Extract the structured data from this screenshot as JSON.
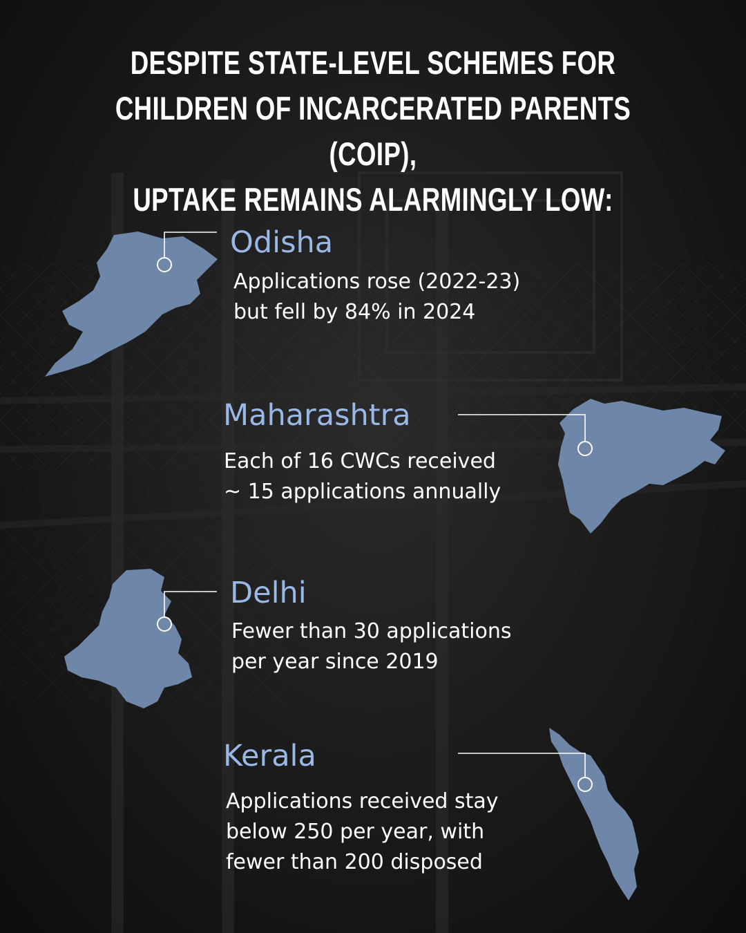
{
  "headline": {
    "lines": [
      "DESPITE STATE-LEVEL SCHEMES FOR",
      "CHILDREN OF INCARCERATED PARENTS (COIP),",
      "UPTAKE REMAINS ALARMINGLY LOW:"
    ]
  },
  "theme": {
    "background": "#1a1a1a",
    "map_fill": "#6e86a7",
    "state_name_color": "#9ab8e6",
    "text_color": "#ffffff"
  },
  "states": [
    {
      "name": "Odisha",
      "desc_lines": [
        "Applications rose (2022-23)",
        "but fell by 84% in 2024"
      ]
    },
    {
      "name": "Maharashtra",
      "desc_lines": [
        "Each of 16 CWCs received",
        "~ 15 applications annually"
      ]
    },
    {
      "name": "Delhi",
      "desc_lines": [
        "Fewer than 30 applications",
        "per year since 2019"
      ]
    },
    {
      "name": "Kerala",
      "desc_lines": [
        "Applications received stay",
        "below 250 per year, with",
        "fewer than 200 disposed"
      ]
    }
  ]
}
